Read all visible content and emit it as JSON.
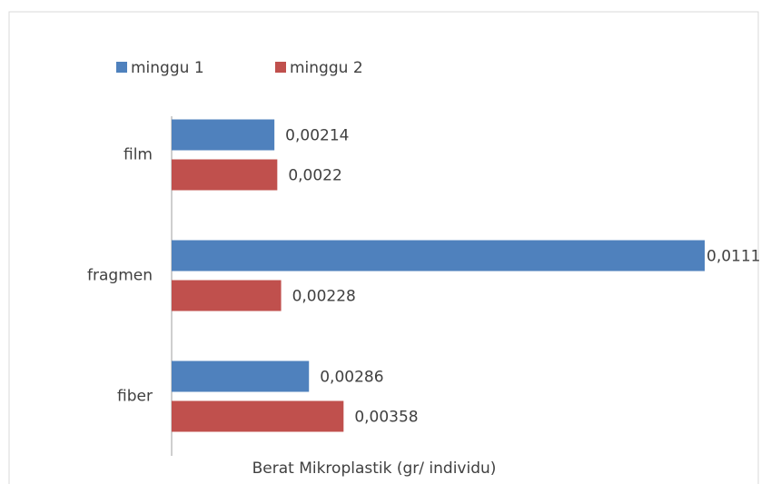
{
  "chart_data": {
    "type": "bar",
    "orientation": "horizontal",
    "x_label": "Berat Mikroplastik (gr/ individu)",
    "categories": [
      "film",
      "fragmen",
      "fiber"
    ],
    "series": [
      {
        "name": "minggu 1",
        "color": "#4f81bd",
        "values": [
          0.00214,
          0.0111,
          0.00286
        ],
        "value_labels": [
          "0,00214",
          "0,0111",
          "0,00286"
        ]
      },
      {
        "name": "minggu 2",
        "color": "#c0504d",
        "values": [
          0.0022,
          0.00228,
          0.00358
        ],
        "value_labels": [
          "0,0022",
          "0,00228",
          "0,00358"
        ]
      }
    ],
    "xlim": [
      0,
      0.0111
    ],
    "legend": "top-left"
  }
}
